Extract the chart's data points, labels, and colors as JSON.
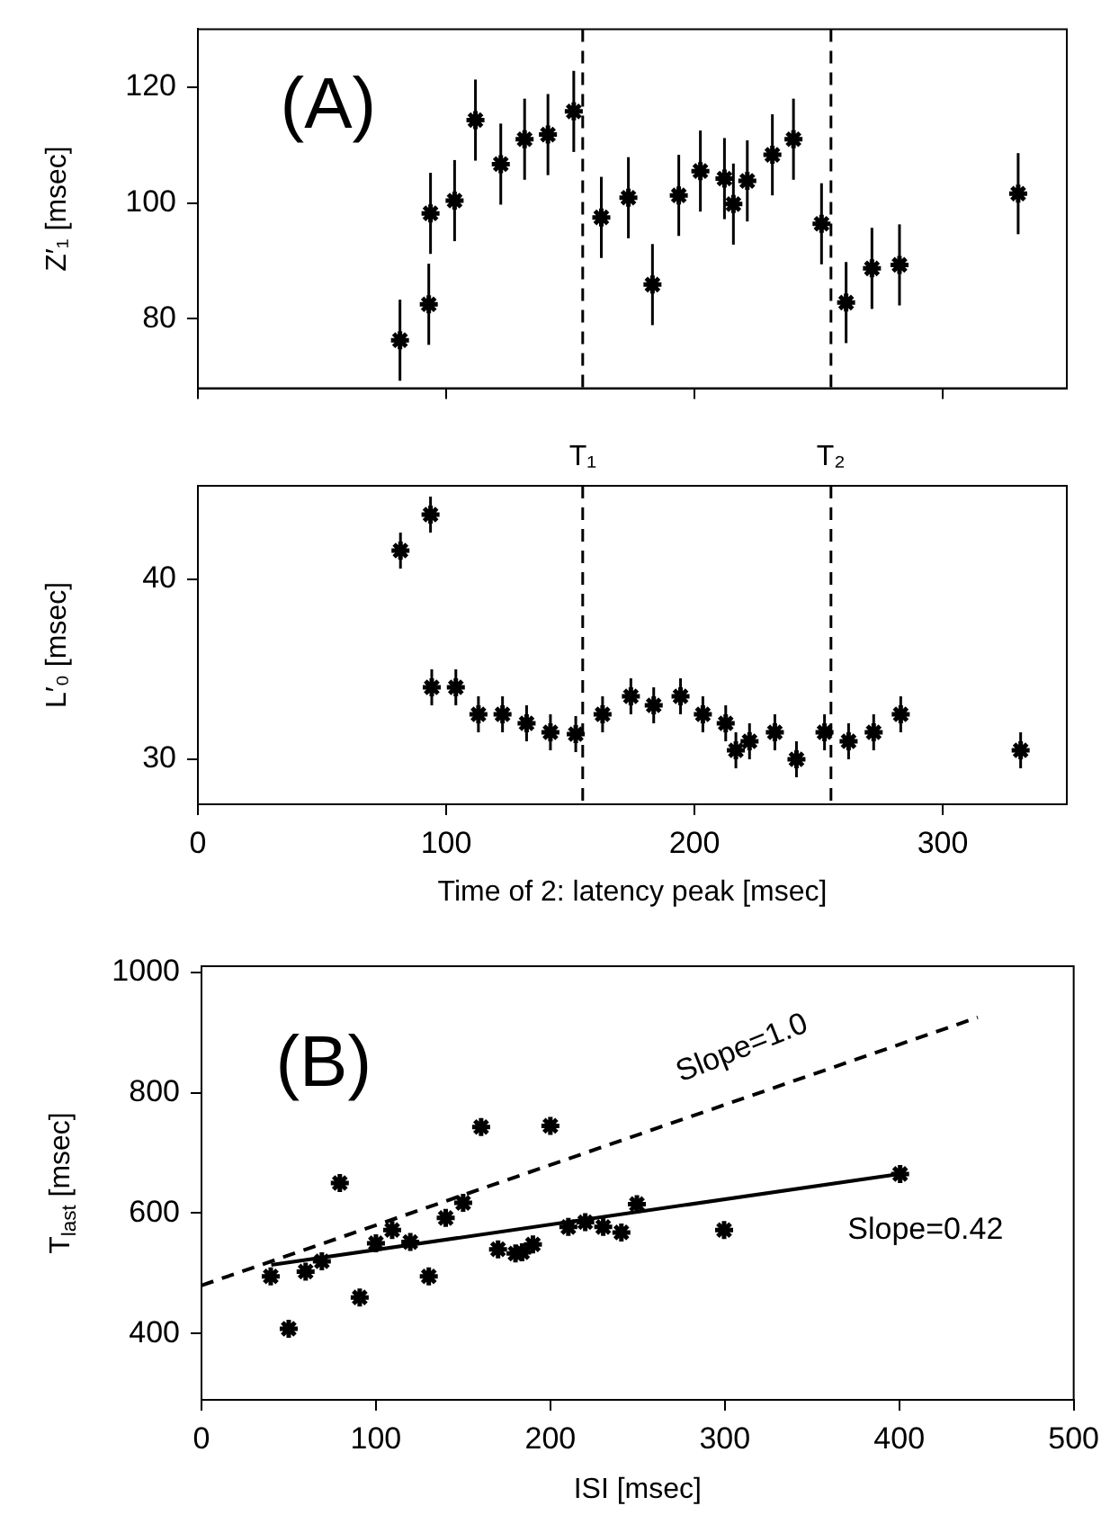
{
  "chart_data": [
    {
      "type": "scatter",
      "annotations": [
        "(A)"
      ],
      "ylabel": "Z′₁ [msec]",
      "marker": "cross",
      "tick_labels": "y",
      "x": [
        81.4,
        93,
        93.7,
        103.4,
        111.8,
        122,
        131.6,
        141,
        151.4,
        162.5,
        173.4,
        183.1,
        193.7,
        202.4,
        212.1,
        215.7,
        221.3,
        231.4,
        239.9,
        251.2,
        261.1,
        271.5,
        282.6,
        330.4
      ],
      "series": [
        {
          "color": "#000000",
          "values": [
            76.3,
            82.5,
            98.2,
            100.4,
            114.3,
            106.7,
            111,
            111.8,
            115.8,
            97.5,
            100.9,
            85.9,
            101.3,
            105.5,
            104.2,
            99.8,
            103.8,
            108.3,
            111,
            96.4,
            82.8,
            88.7,
            89.3,
            101.6
          ],
          "errors": [
            7,
            7,
            7,
            7,
            7,
            7,
            7,
            7,
            7,
            7,
            7,
            7,
            7,
            7,
            7,
            7,
            7,
            7,
            7,
            7,
            7,
            7,
            7,
            7
          ]
        }
      ],
      "xlim": [
        0,
        350
      ],
      "xticks": [
        0,
        100,
        200,
        300
      ],
      "ylim": [
        68,
        130
      ],
      "yticks": [
        80,
        100,
        120
      ],
      "ref_lines": [
        {
          "axis": "x",
          "value": 155,
          "line_style": "dashed",
          "color": "#000000"
        },
        {
          "axis": "x",
          "value": 255,
          "line_style": "dashed",
          "color": "#000000"
        }
      ]
    },
    {
      "type": "scatter",
      "xlabel": "Time of 2: latency peak [msec]",
      "ylabel": "L′₀ [msec]",
      "marker": "cross",
      "x": [
        81.6,
        93.7,
        94.2,
        103.9,
        113,
        122.7,
        132.4,
        142,
        152.2,
        163,
        174.4,
        183.6,
        194.4,
        203.4,
        212.6,
        216.7,
        222.2,
        232.4,
        241.1,
        252.4,
        262.1,
        272.2,
        283.1,
        331.4
      ],
      "series": [
        {
          "color": "#000000",
          "values": [
            41.6,
            43.6,
            34,
            34,
            32.5,
            32.5,
            32,
            31.5,
            31.4,
            32.5,
            33.5,
            33,
            33.5,
            32.5,
            32,
            30.5,
            31,
            31.5,
            30,
            31.5,
            31,
            31.5,
            32.5,
            30.5
          ],
          "errors": [
            1,
            1,
            1,
            1,
            1,
            1,
            1,
            1,
            1,
            1,
            1,
            1,
            1,
            1,
            1,
            1,
            1,
            1,
            1,
            1,
            1,
            1,
            1,
            1
          ]
        }
      ],
      "xlim": [
        0,
        350
      ],
      "xticks": [
        0,
        100,
        200,
        300
      ],
      "ylim": [
        27.5,
        45.2
      ],
      "yticks": [
        30,
        40
      ],
      "ref_lines": [
        {
          "axis": "x",
          "value": 155,
          "label": "T₁",
          "line_style": "dashed",
          "color": "#000000"
        },
        {
          "axis": "x",
          "value": 255,
          "label": "T₂",
          "line_style": "dashed",
          "color": "#000000"
        }
      ]
    },
    {
      "type": "scatter",
      "annotations": [
        "(B)",
        "Slope=1.0",
        "Slope=0.42"
      ],
      "xlabel": "ISI [msec]",
      "ylabel": "T$_{last}$ [msec]",
      "marker": "cross",
      "x": [
        39.7,
        50,
        59.7,
        69,
        79.3,
        90.7,
        100,
        109.3,
        119.7,
        130.3,
        140,
        150,
        160.3,
        170,
        180,
        183.8,
        190,
        200,
        210.3,
        220,
        230.3,
        240.7,
        249.6,
        299.6,
        400.5
      ],
      "series": [
        {
          "color": "#000000",
          "values": [
            495,
            408,
            503,
            520,
            650,
            460,
            550,
            572,
            552,
            495,
            592,
            617,
            743,
            540,
            533,
            535,
            548,
            745,
            577,
            585,
            577,
            568,
            615,
            572,
            665
          ]
        },
        {
          "type": "line",
          "color": "#000000",
          "x": [
            40,
            400
          ],
          "values": [
            514,
            665
          ],
          "line_style": "solid",
          "marker": "none"
        },
        {
          "type": "line",
          "color": "#000000",
          "x": [
            0,
            445
          ],
          "values": [
            480,
            925
          ],
          "line_style": "dashed",
          "marker": "none"
        }
      ],
      "xlim": [
        0,
        500
      ],
      "xticks": [
        0,
        100,
        200,
        300,
        400,
        500
      ],
      "ylim": [
        290,
        1010
      ],
      "yticks": [
        400,
        600,
        800,
        1000
      ]
    }
  ]
}
